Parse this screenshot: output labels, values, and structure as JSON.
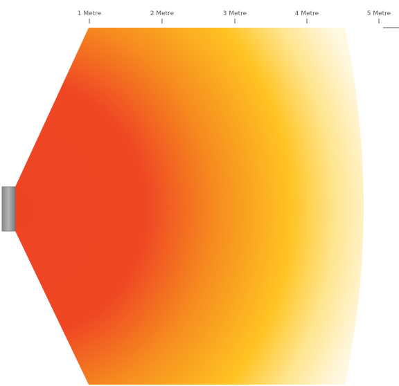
{
  "scale": {
    "ticks": [
      "1 Metre",
      "2 Metre",
      "3 Metre",
      "4 Metre",
      "5 Metre"
    ]
  },
  "colors": {
    "near": "#ee4424",
    "mid": "#f7941d",
    "far": "#ffc423",
    "edge": "#fff6d5",
    "heater_light": "#a8a8a8",
    "heater_dark": "#7c7c7c"
  },
  "icons": {
    "heater": "heater-unit-icon"
  }
}
